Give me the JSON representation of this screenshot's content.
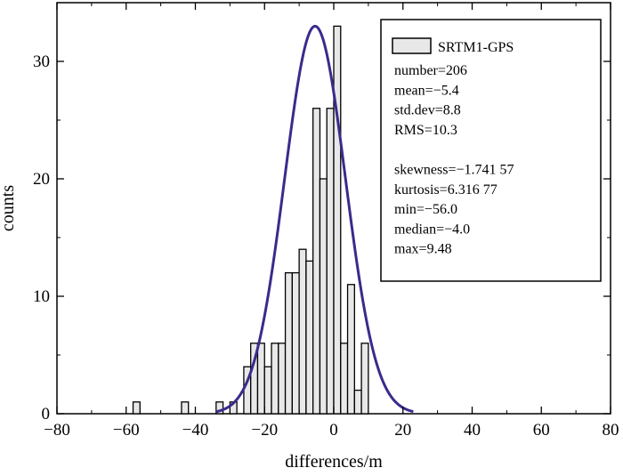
{
  "chart_data": {
    "type": "bar",
    "subtype": "histogram",
    "xlabel": "differences/m",
    "ylabel": "counts",
    "xlim": [
      -80,
      80
    ],
    "ylim": [
      0,
      35
    ],
    "x_ticks": [
      -80,
      -60,
      -40,
      -20,
      0,
      20,
      40,
      60,
      80
    ],
    "y_ticks": [
      0,
      10,
      20,
      30
    ],
    "x_tick_labels": [
      "−80",
      "−60",
      "−40",
      "−20",
      "0",
      "20",
      "40",
      "60",
      "80"
    ],
    "y_tick_labels": [
      "0",
      "10",
      "20",
      "30"
    ],
    "bin_width": 2,
    "bins": [
      {
        "x0": -58,
        "x1": -56,
        "count": 1
      },
      {
        "x0": -44,
        "x1": -42,
        "count": 1
      },
      {
        "x0": -34,
        "x1": -32,
        "count": 1
      },
      {
        "x0": -30,
        "x1": -28,
        "count": 1
      },
      {
        "x0": -26,
        "x1": -24,
        "count": 4
      },
      {
        "x0": -24,
        "x1": -22,
        "count": 6
      },
      {
        "x0": -22,
        "x1": -20,
        "count": 6
      },
      {
        "x0": -20,
        "x1": -18,
        "count": 4
      },
      {
        "x0": -18,
        "x1": -16,
        "count": 6
      },
      {
        "x0": -16,
        "x1": -14,
        "count": 6
      },
      {
        "x0": -14,
        "x1": -12,
        "count": 12
      },
      {
        "x0": -12,
        "x1": -10,
        "count": 12
      },
      {
        "x0": -10,
        "x1": -8,
        "count": 14
      },
      {
        "x0": -8,
        "x1": -6,
        "count": 13
      },
      {
        "x0": -6,
        "x1": -4,
        "count": 26
      },
      {
        "x0": -4,
        "x1": -2,
        "count": 20
      },
      {
        "x0": -2,
        "x1": 0,
        "count": 26
      },
      {
        "x0": 0,
        "x1": 2,
        "count": 33
      },
      {
        "x0": 2,
        "x1": 4,
        "count": 6
      },
      {
        "x0": 4,
        "x1": 6,
        "count": 11
      },
      {
        "x0": 6,
        "x1": 8,
        "count": 2
      },
      {
        "x0": 8,
        "x1": 10,
        "count": 6
      }
    ],
    "fit_curve": {
      "type": "normal",
      "mean": -5.4,
      "peak": 33,
      "sigma": 8.8,
      "x_range": [
        -34,
        23
      ],
      "color": "#3b2a8c"
    },
    "bar_fill": "#e8e8e8",
    "bar_stroke": "#000000",
    "legend": {
      "placement": "top-right",
      "series_name": "SRTM1-GPS",
      "stats": [
        "number=206",
        "mean=−5.4",
        "std.dev=8.8",
        "RMS=10.3",
        "",
        "skewness=−1.741 57",
        "kurtosis=6.316 77",
        "min=−56.0",
        "median=−4.0",
        "max=9.48"
      ]
    }
  }
}
